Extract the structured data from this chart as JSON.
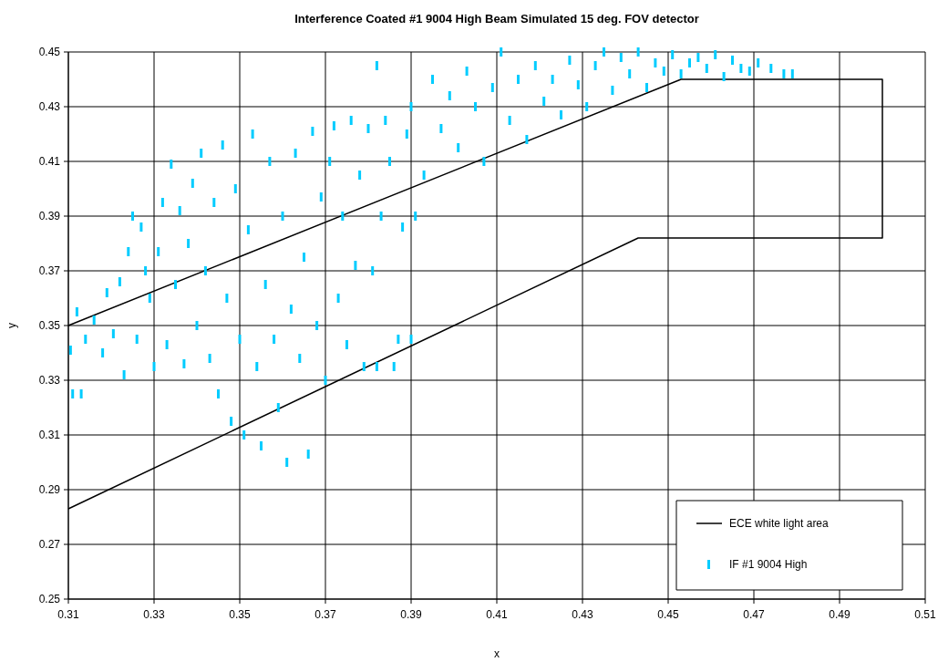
{
  "chart_data": {
    "type": "scatter",
    "title": "Interference Coated #1 9004 High Beam Simulated 15 deg. FOV detector",
    "xlabel": "x",
    "ylabel": "y",
    "xlim": [
      0.31,
      0.51
    ],
    "xticks": [
      0.31,
      0.33,
      0.35,
      0.37,
      0.39,
      0.41,
      0.43,
      0.45,
      0.47,
      0.49,
      0.51
    ],
    "ylim": [
      0.25,
      0.45
    ],
    "yticks": [
      0.25,
      0.27,
      0.29,
      0.31,
      0.33,
      0.35,
      0.37,
      0.39,
      0.41,
      0.43,
      0.45
    ],
    "grid": true,
    "legend": "bottom right",
    "series": [
      {
        "name": "ECE white light area",
        "type": "line",
        "color": "#000000",
        "x": [
          0.31,
          0.453,
          0.5,
          0.5,
          0.443,
          0.31
        ],
        "values": [
          0.35,
          0.44,
          0.44,
          0.382,
          0.382,
          0.283
        ]
      },
      {
        "name": "IF #1 9004 High",
        "type": "scatter",
        "color": "#00ccff",
        "x": [
          0.3105,
          0.311,
          0.313,
          0.312,
          0.314,
          0.316,
          0.318,
          0.319,
          0.3205,
          0.322,
          0.323,
          0.324,
          0.325,
          0.326,
          0.327,
          0.328,
          0.329,
          0.33,
          0.331,
          0.332,
          0.333,
          0.334,
          0.335,
          0.336,
          0.337,
          0.338,
          0.339,
          0.34,
          0.341,
          0.342,
          0.343,
          0.344,
          0.345,
          0.346,
          0.347,
          0.348,
          0.349,
          0.35,
          0.351,
          0.352,
          0.353,
          0.354,
          0.355,
          0.356,
          0.357,
          0.358,
          0.359,
          0.36,
          0.361,
          0.362,
          0.363,
          0.364,
          0.365,
          0.366,
          0.367,
          0.368,
          0.369,
          0.37,
          0.371,
          0.372,
          0.373,
          0.374,
          0.375,
          0.376,
          0.377,
          0.378,
          0.379,
          0.38,
          0.381,
          0.382,
          0.383,
          0.384,
          0.385,
          0.387,
          0.388,
          0.389,
          0.39,
          0.391,
          0.393,
          0.395,
          0.397,
          0.399,
          0.401,
          0.403,
          0.405,
          0.407,
          0.409,
          0.411,
          0.413,
          0.415,
          0.417,
          0.419,
          0.421,
          0.423,
          0.425,
          0.427,
          0.429,
          0.431,
          0.433,
          0.435,
          0.437,
          0.439,
          0.441,
          0.443,
          0.445,
          0.447,
          0.449,
          0.451,
          0.453,
          0.455,
          0.457,
          0.459,
          0.461,
          0.463,
          0.465,
          0.467,
          0.469,
          0.471,
          0.474,
          0.477,
          0.479,
          0.39,
          0.386,
          0.382
        ],
        "values": [
          0.341,
          0.325,
          0.325,
          0.355,
          0.345,
          0.352,
          0.34,
          0.362,
          0.347,
          0.366,
          0.332,
          0.377,
          0.39,
          0.345,
          0.386,
          0.37,
          0.36,
          0.335,
          0.377,
          0.395,
          0.343,
          0.409,
          0.365,
          0.392,
          0.336,
          0.38,
          0.402,
          0.35,
          0.413,
          0.37,
          0.338,
          0.395,
          0.325,
          0.416,
          0.36,
          0.315,
          0.4,
          0.345,
          0.31,
          0.385,
          0.42,
          0.335,
          0.306,
          0.365,
          0.41,
          0.345,
          0.32,
          0.39,
          0.3,
          0.356,
          0.413,
          0.338,
          0.375,
          0.303,
          0.421,
          0.35,
          0.397,
          0.33,
          0.41,
          0.423,
          0.36,
          0.39,
          0.343,
          0.425,
          0.372,
          0.405,
          0.335,
          0.422,
          0.37,
          0.445,
          0.39,
          0.425,
          0.41,
          0.345,
          0.386,
          0.42,
          0.43,
          0.39,
          0.405,
          0.44,
          0.422,
          0.434,
          0.415,
          0.443,
          0.43,
          0.41,
          0.437,
          0.45,
          0.425,
          0.44,
          0.418,
          0.445,
          0.432,
          0.44,
          0.427,
          0.447,
          0.438,
          0.43,
          0.445,
          0.45,
          0.436,
          0.448,
          0.442,
          0.45,
          0.437,
          0.446,
          0.443,
          0.449,
          0.442,
          0.446,
          0.448,
          0.444,
          0.449,
          0.441,
          0.447,
          0.444,
          0.443,
          0.446,
          0.444,
          0.442,
          0.442,
          0.345,
          0.335,
          0.335
        ]
      }
    ]
  }
}
